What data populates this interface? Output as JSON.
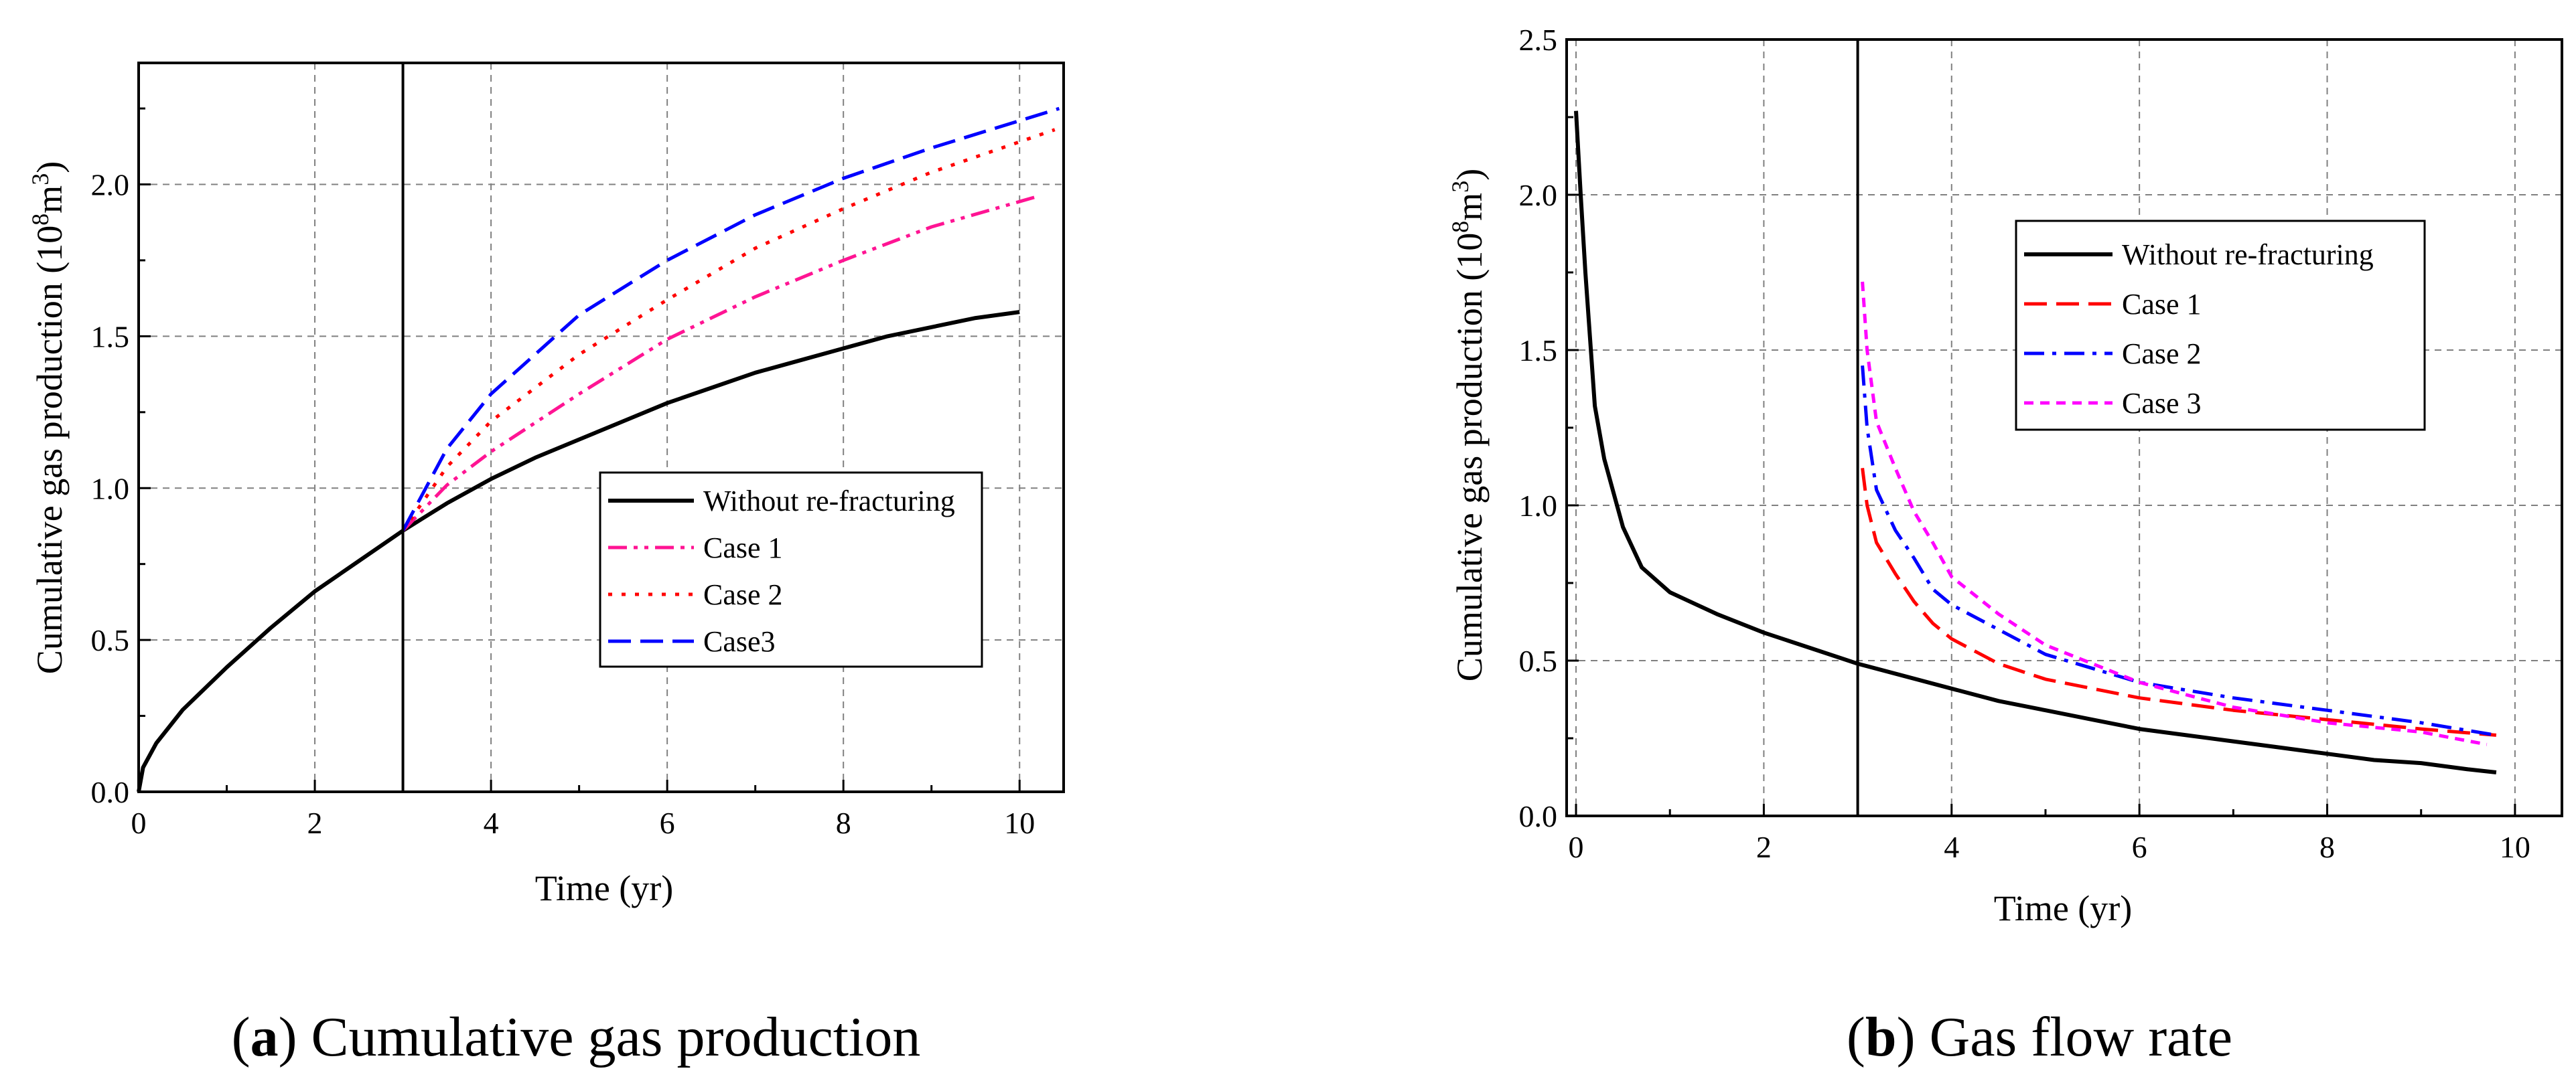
{
  "chart_data": [
    {
      "type": "line",
      "panel": "a",
      "caption_letter": "a",
      "caption_text": " Cumulative gas production",
      "xlabel": "Time (yr)",
      "ylabel_main": "Cumulative gas production (10",
      "ylabel_sup1": "8",
      "ylabel_mid": "m",
      "ylabel_sup2": "3",
      "ylabel_end": ")",
      "xlim": [
        0,
        10.5
      ],
      "ylim": [
        0,
        2.4
      ],
      "xticks": [
        0,
        2,
        4,
        6,
        8,
        10
      ],
      "yticks": [
        0.0,
        0.5,
        1.0,
        1.5,
        2.0
      ],
      "xtick_labels": [
        "0",
        "2",
        "4",
        "6",
        "8",
        "10"
      ],
      "ytick_labels": [
        "0.0",
        "0.5",
        "1.0",
        "1.5",
        "2.0"
      ],
      "grid": true,
      "vline_x": 3,
      "legend_position": "center-right",
      "series": [
        {
          "name": "Without re-fracturing",
          "color": "#000000",
          "dash": "solid",
          "x": [
            0,
            0.05,
            0.2,
            0.5,
            1.0,
            1.5,
            2.0,
            2.5,
            3.0,
            3.5,
            4.0,
            4.5,
            5.0,
            5.5,
            6.0,
            6.5,
            7.0,
            7.5,
            8.0,
            8.5,
            9.0,
            9.5,
            10.0
          ],
          "y": [
            0,
            0.08,
            0.16,
            0.27,
            0.41,
            0.54,
            0.66,
            0.76,
            0.86,
            0.95,
            1.03,
            1.1,
            1.16,
            1.22,
            1.28,
            1.33,
            1.38,
            1.42,
            1.46,
            1.5,
            1.53,
            1.56,
            1.58
          ]
        },
        {
          "name": "Case 1",
          "color": "#ff1493",
          "dash": "dash-dot-dot",
          "x": [
            3.0,
            3.5,
            4.0,
            5.0,
            6.0,
            7.0,
            8.0,
            9.0,
            10.2
          ],
          "y": [
            0.86,
            1.01,
            1.12,
            1.31,
            1.49,
            1.63,
            1.75,
            1.86,
            1.96
          ]
        },
        {
          "name": "Case 2",
          "color": "#ff0000",
          "dash": "dotted",
          "x": [
            3.0,
            3.5,
            4.0,
            5.0,
            6.0,
            7.0,
            8.0,
            9.0,
            10.4
          ],
          "y": [
            0.86,
            1.07,
            1.22,
            1.44,
            1.62,
            1.79,
            1.92,
            2.04,
            2.18
          ]
        },
        {
          "name": "Case3",
          "color": "#0000ff",
          "dash": "dashed",
          "x": [
            3.0,
            3.5,
            4.0,
            5.0,
            6.0,
            7.0,
            8.0,
            9.0,
            10.45
          ],
          "y": [
            0.86,
            1.13,
            1.31,
            1.57,
            1.75,
            1.9,
            2.02,
            2.12,
            2.25
          ]
        }
      ]
    },
    {
      "type": "line",
      "panel": "b",
      "caption_letter": "b",
      "caption_text": " Gas flow rate",
      "xlabel": "Time (yr)",
      "ylabel_main": "Cumulative gas production (10",
      "ylabel_sup1": "8",
      "ylabel_mid": "m",
      "ylabel_sup2": "3",
      "ylabel_end": ")",
      "xlim": [
        -0.1,
        10.5
      ],
      "ylim": [
        0,
        2.5
      ],
      "xticks": [
        0,
        2,
        4,
        6,
        8,
        10
      ],
      "yticks": [
        0.0,
        0.5,
        1.0,
        1.5,
        2.0,
        2.5
      ],
      "xtick_labels": [
        "0",
        "2",
        "4",
        "6",
        "8",
        "10"
      ],
      "ytick_labels": [
        "0.0",
        "0.5",
        "1.0",
        "1.5",
        "2.0",
        "2.5"
      ],
      "grid": true,
      "vline_x": 3,
      "legend_position": "top-right",
      "series": [
        {
          "name": "Without re-fracturing",
          "color": "#000000",
          "dash": "solid",
          "x": [
            0.0,
            0.05,
            0.1,
            0.2,
            0.3,
            0.5,
            0.7,
            1.0,
            1.5,
            2.0,
            2.5,
            3.0,
            3.5,
            4.0,
            4.5,
            5.0,
            5.5,
            6.0,
            6.5,
            7.0,
            7.5,
            8.0,
            8.5,
            9.0,
            9.5,
            9.8
          ],
          "y": [
            2.27,
            2.0,
            1.75,
            1.32,
            1.15,
            0.93,
            0.8,
            0.72,
            0.65,
            0.59,
            0.54,
            0.49,
            0.45,
            0.41,
            0.37,
            0.34,
            0.31,
            0.28,
            0.26,
            0.24,
            0.22,
            0.2,
            0.18,
            0.17,
            0.15,
            0.14
          ]
        },
        {
          "name": "Case 1",
          "color": "#ff0000",
          "dash": "dashed",
          "x": [
            3.05,
            3.1,
            3.2,
            3.4,
            3.6,
            3.8,
            4.0,
            4.5,
            5.0,
            6.0,
            7.0,
            8.0,
            9.0,
            9.8
          ],
          "y": [
            1.12,
            1.0,
            0.88,
            0.78,
            0.69,
            0.62,
            0.57,
            0.49,
            0.44,
            0.38,
            0.34,
            0.31,
            0.28,
            0.26
          ]
        },
        {
          "name": "Case 2",
          "color": "#0000ff",
          "dash": "dash-dot",
          "x": [
            3.05,
            3.1,
            3.2,
            3.4,
            3.6,
            3.8,
            4.0,
            4.5,
            5.0,
            6.0,
            7.0,
            8.0,
            9.0,
            9.8
          ],
          "y": [
            1.45,
            1.25,
            1.05,
            0.92,
            0.83,
            0.73,
            0.68,
            0.6,
            0.52,
            0.43,
            0.38,
            0.34,
            0.3,
            0.26
          ]
        },
        {
          "name": "Case 3",
          "color": "#ff00ff",
          "dash": "short-dash",
          "x": [
            3.05,
            3.1,
            3.2,
            3.4,
            3.6,
            3.8,
            4.0,
            4.5,
            5.0,
            6.0,
            7.0,
            8.0,
            9.0,
            9.7
          ],
          "y": [
            1.72,
            1.5,
            1.27,
            1.12,
            0.98,
            0.88,
            0.77,
            0.65,
            0.55,
            0.43,
            0.35,
            0.3,
            0.27,
            0.23
          ]
        }
      ]
    }
  ]
}
